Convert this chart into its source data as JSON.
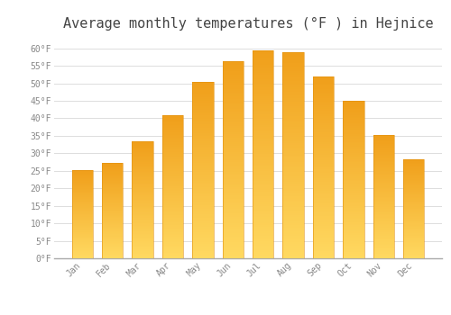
{
  "title": "Average monthly temperatures (°F ) in Hejnice",
  "months": [
    "Jan",
    "Feb",
    "Mar",
    "Apr",
    "May",
    "Jun",
    "Jul",
    "Aug",
    "Sep",
    "Oct",
    "Nov",
    "Dec"
  ],
  "values": [
    25.2,
    27.3,
    33.4,
    41.0,
    50.5,
    56.3,
    59.5,
    58.8,
    52.0,
    45.0,
    35.2,
    28.4
  ],
  "bar_color_top": "#F0A500",
  "bar_color_bottom": "#FFD060",
  "background_color": "#FFFFFF",
  "grid_color": "#DDDDDD",
  "ylim": [
    0,
    63
  ],
  "yticks": [
    0,
    5,
    10,
    15,
    20,
    25,
    30,
    35,
    40,
    45,
    50,
    55,
    60
  ],
  "tick_label_color": "#888888",
  "title_color": "#444444",
  "title_fontsize": 11
}
